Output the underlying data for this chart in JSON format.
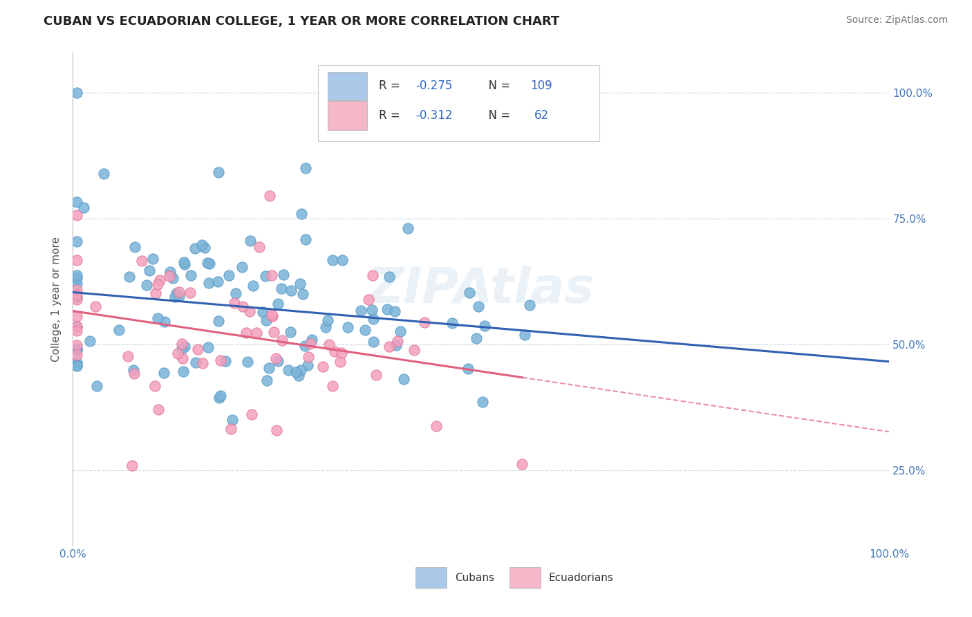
{
  "title": "CUBAN VS ECUADORIAN COLLEGE, 1 YEAR OR MORE CORRELATION CHART",
  "source": "Source: ZipAtlas.com",
  "ylabel": "College, 1 year or more",
  "ytick_labels": [
    "25.0%",
    "50.0%",
    "75.0%",
    "100.0%"
  ],
  "ytick_values": [
    0.25,
    0.5,
    0.75,
    1.0
  ],
  "cubans_R": -0.275,
  "cubans_N": 109,
  "ecuadorians_R": -0.312,
  "ecuadorians_N": 62,
  "cubans_dot_color": "#7ab3d8",
  "cubans_dot_edge": "#5a9bc8",
  "ecuadorians_dot_color": "#f4a0bc",
  "ecuadorians_dot_edge": "#e07898",
  "cubans_legend_color": "#aac8e8",
  "ecuadorians_legend_color": "#f4b8c8",
  "trendline_cuban_color": "#3060b0",
  "trendline_ecuadorian_color": "#e06080",
  "background_color": "#ffffff",
  "grid_color": "#c8d4e0",
  "watermark": "ZIPAtlas",
  "xlim": [
    0.0,
    1.0
  ],
  "ylim": [
    0.1,
    1.08
  ]
}
